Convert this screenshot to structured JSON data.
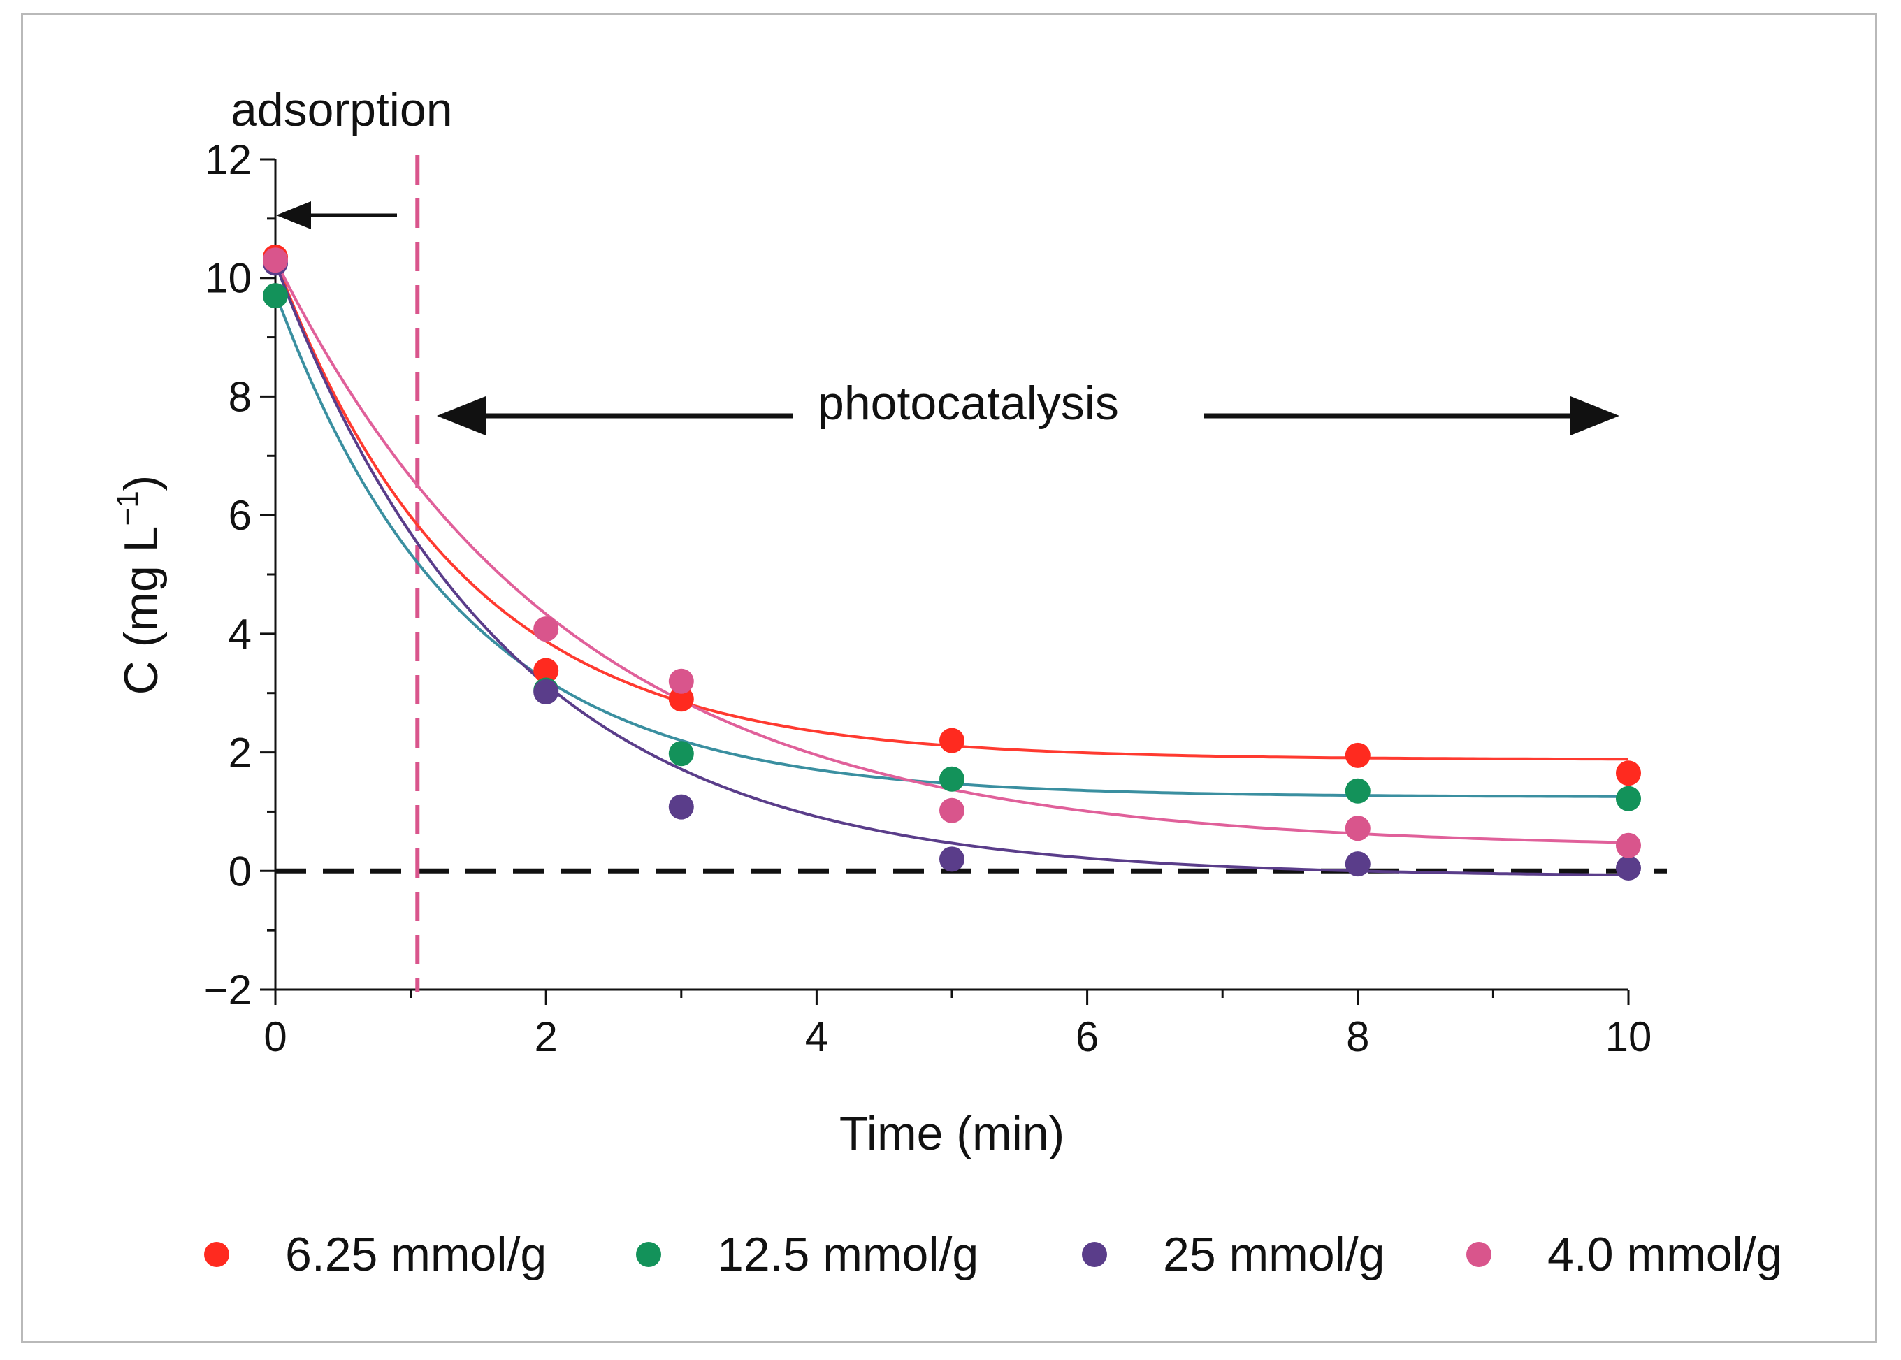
{
  "chart_data": {
    "type": "scatter",
    "xlabel": "Time (min)",
    "ylabel": "C (mg L",
    "ylabel_sup": "−1",
    "ylabel_close": ")",
    "xlim": [
      0,
      10
    ],
    "ylim": [
      -2,
      12
    ],
    "xticks": [
      0,
      2,
      4,
      6,
      8,
      10
    ],
    "yticks": [
      -2,
      0,
      2,
      4,
      6,
      8,
      10,
      12
    ],
    "grid": false,
    "legend_position": "bottom",
    "reference_lines": {
      "horizontal_dashed_y": 0,
      "vertical_dashed_x": 1.05
    },
    "annotations": {
      "adsorption": "adsorption",
      "photocatalysis": "photocatalysis"
    },
    "series": [
      {
        "name": "6.25 mmol/g",
        "color": "#ff2a1f",
        "line_color": "#ff3a30",
        "x": [
          0,
          2,
          3,
          5,
          8,
          10
        ],
        "y": [
          10.35,
          3.38,
          2.9,
          2.2,
          1.95,
          1.65
        ],
        "fit": {
          "c_inf": 1.88,
          "c0": 10.3,
          "k": 0.72
        }
      },
      {
        "name": "12.5 mmol/g",
        "color": "#13925a",
        "line_color": "#3a8fa0",
        "x": [
          0,
          2,
          3,
          5,
          8,
          10
        ],
        "y": [
          9.7,
          3.05,
          1.98,
          1.55,
          1.35,
          1.22
        ],
        "fit": {
          "c_inf": 1.25,
          "c0": 9.75,
          "k": 0.73
        }
      },
      {
        "name": "25 mmol/g",
        "color": "#5a3d8a",
        "line_color": "#5a3d8a",
        "x": [
          0,
          2,
          3,
          5,
          8,
          10
        ],
        "y": [
          10.25,
          3.02,
          1.08,
          0.2,
          0.12,
          0.05
        ],
        "fit": {
          "c_inf": -0.1,
          "c0": 10.25,
          "k": 0.58
        }
      },
      {
        "name": "4.0 mmol/g",
        "color": "#d9558c",
        "line_color": "#e0609a",
        "x": [
          0,
          2,
          3,
          5,
          8,
          10
        ],
        "y": [
          10.3,
          4.08,
          3.2,
          1.02,
          0.72,
          0.43
        ],
        "fit": {
          "c_inf": 0.38,
          "c0": 10.3,
          "k": 0.46
        }
      }
    ]
  }
}
